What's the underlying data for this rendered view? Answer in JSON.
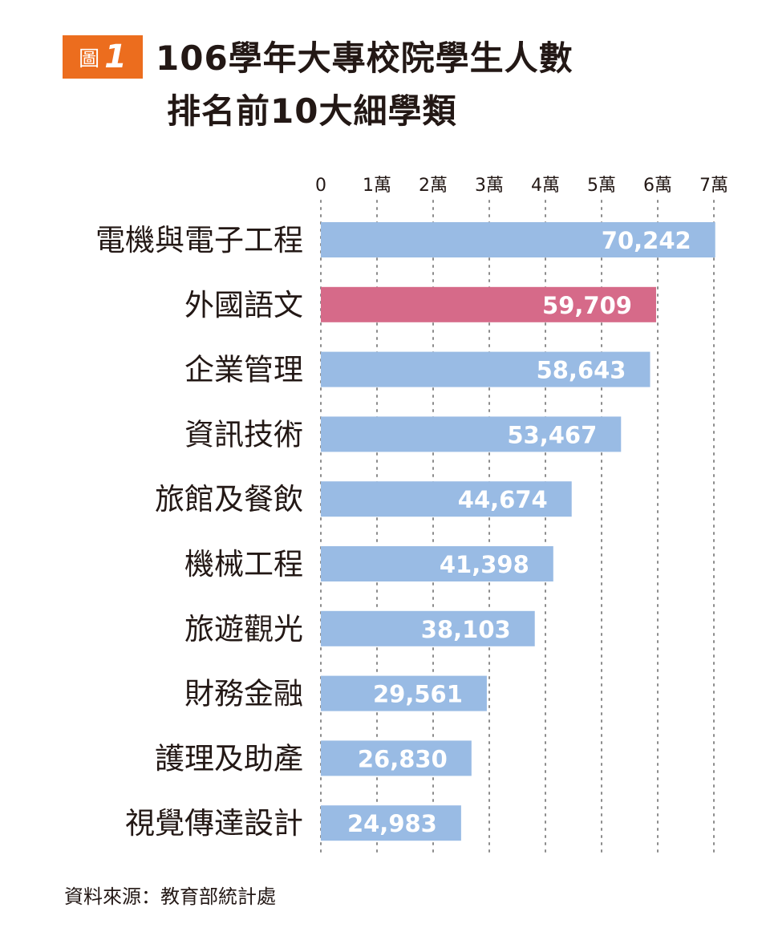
{
  "figure": {
    "badge_word": "圖",
    "badge_number": "1",
    "title_line1": "106學年大專校院學生人數",
    "title_line2": "排名前10大細學類",
    "source": "資料來源：教育部統計處",
    "badge_color": "#ec6d1e"
  },
  "chart_data": {
    "type": "bar",
    "orientation": "horizontal",
    "categories": [
      "電機與電子工程",
      "外國語文",
      "企業管理",
      "資訊技術",
      "旅館及餐飲",
      "機械工程",
      "旅遊觀光",
      "財務金融",
      "護理及助產",
      "視覺傳達設計"
    ],
    "values": [
      70242,
      59709,
      58643,
      53467,
      44674,
      41398,
      38103,
      29561,
      26830,
      24983
    ],
    "value_labels": [
      "70,242",
      "59,709",
      "58,643",
      "53,467",
      "44,674",
      "41,398",
      "38,103",
      "29,561",
      "26,830",
      "24,983"
    ],
    "xlim": [
      0,
      70000
    ],
    "x_ticks": [
      0,
      10000,
      20000,
      30000,
      40000,
      50000,
      60000,
      70000
    ],
    "x_tick_labels": [
      "0",
      "1萬",
      "2萬",
      "3萬",
      "4萬",
      "5萬",
      "6萬",
      "7萬"
    ],
    "axis_position": "top",
    "grid": "vertical dotted",
    "highlight_index": 1,
    "bar_color": "#99bbe4",
    "highlight_color": "#d66a89",
    "label_color": "#ffffff"
  }
}
